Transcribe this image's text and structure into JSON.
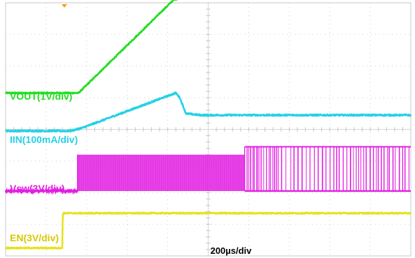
{
  "chart_data": {
    "type": "line",
    "title": "",
    "xlabel": "200µs/div",
    "grid": true,
    "x_divisions": 10,
    "y_divisions": 8,
    "trigger_marker": "top",
    "series": [
      {
        "name": "VOUT(1V/div)",
        "color": "#22dd22",
        "label_color": "#22dd22",
        "time_div": [
          0,
          1.8,
          4.15,
          4.5,
          10
        ],
        "level_div": [
          5.15,
          5.15,
          8.1,
          8.2,
          8.2
        ],
        "noise": 0.02
      },
      {
        "name": "IIN(100mA/div)",
        "color": "#25d1e6",
        "label_color": "#25d1e6",
        "time_div": [
          0,
          1.6,
          1.9,
          4.2,
          4.3,
          4.45,
          4.8,
          10
        ],
        "level_div": [
          3.95,
          3.95,
          4.05,
          5.15,
          5.0,
          4.5,
          4.45,
          4.45
        ],
        "noise": 0.025
      },
      {
        "name": "Vsw(3V/div)",
        "color": "#e11ee1",
        "label_color": "#e11ee1",
        "baseline_div": 2.05,
        "high_div": 3.2,
        "switch_start_div": 1.78,
        "dense_end_div": 5.9,
        "sparse_end_div": 10,
        "spike_high_div": 3.45,
        "noise": 0.02
      },
      {
        "name": "EN(3V/div)",
        "color": "#e6e222",
        "label_color": "#d8c800",
        "time_div": [
          0,
          1.4,
          1.41,
          10
        ],
        "level_div": [
          0.25,
          0.25,
          1.35,
          1.35
        ],
        "noise": 0.02
      }
    ]
  }
}
